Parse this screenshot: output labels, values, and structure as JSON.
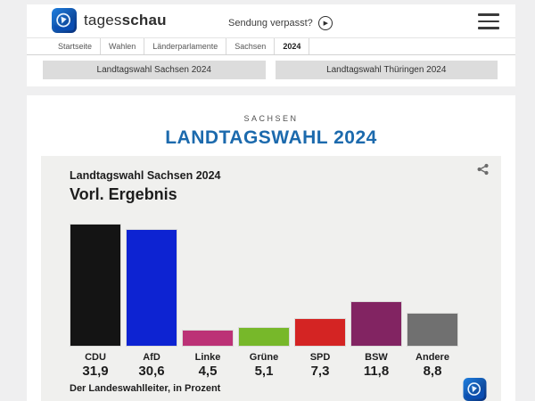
{
  "header": {
    "brand_regular": "tages",
    "brand_bold": "schau",
    "sendung_verpasst": "Sendung verpasst?",
    "play_glyph": "▶"
  },
  "breadcrumb": {
    "items": [
      "Startseite",
      "Wahlen",
      "Länderparlamente",
      "Sachsen",
      "2024"
    ],
    "active": "2024"
  },
  "nav_buttons": {
    "sachsen": "Landtagswahl Sachsen 2024",
    "thueringen": "Landtagswahl Thüringen 2024"
  },
  "page": {
    "kicker": "SACHSEN",
    "title": "LANDTAGSWAHL 2024",
    "title_color": "#1c6aad"
  },
  "chart_data": {
    "type": "bar",
    "title": "Landtagswahl Sachsen 2024",
    "subtitle": "Vorl. Ergebnis",
    "source": "Der Landeswahlleiter, in Prozent",
    "categories": [
      "CDU",
      "AfD",
      "Linke",
      "Grüne",
      "SPD",
      "BSW",
      "Andere"
    ],
    "values": [
      31.9,
      30.6,
      4.5,
      5.1,
      7.3,
      11.8,
      8.8
    ],
    "value_labels": [
      "31,9",
      "30,6",
      "4,5",
      "5,1",
      "7,3",
      "11,8",
      "8,8"
    ],
    "colors": [
      "#141414",
      "#0d23d2",
      "#bc3276",
      "#77b82a",
      "#d42423",
      "#822462",
      "#707070"
    ],
    "ylim": [
      0,
      32
    ],
    "unit": "percent",
    "grid": false,
    "legend": "none"
  }
}
